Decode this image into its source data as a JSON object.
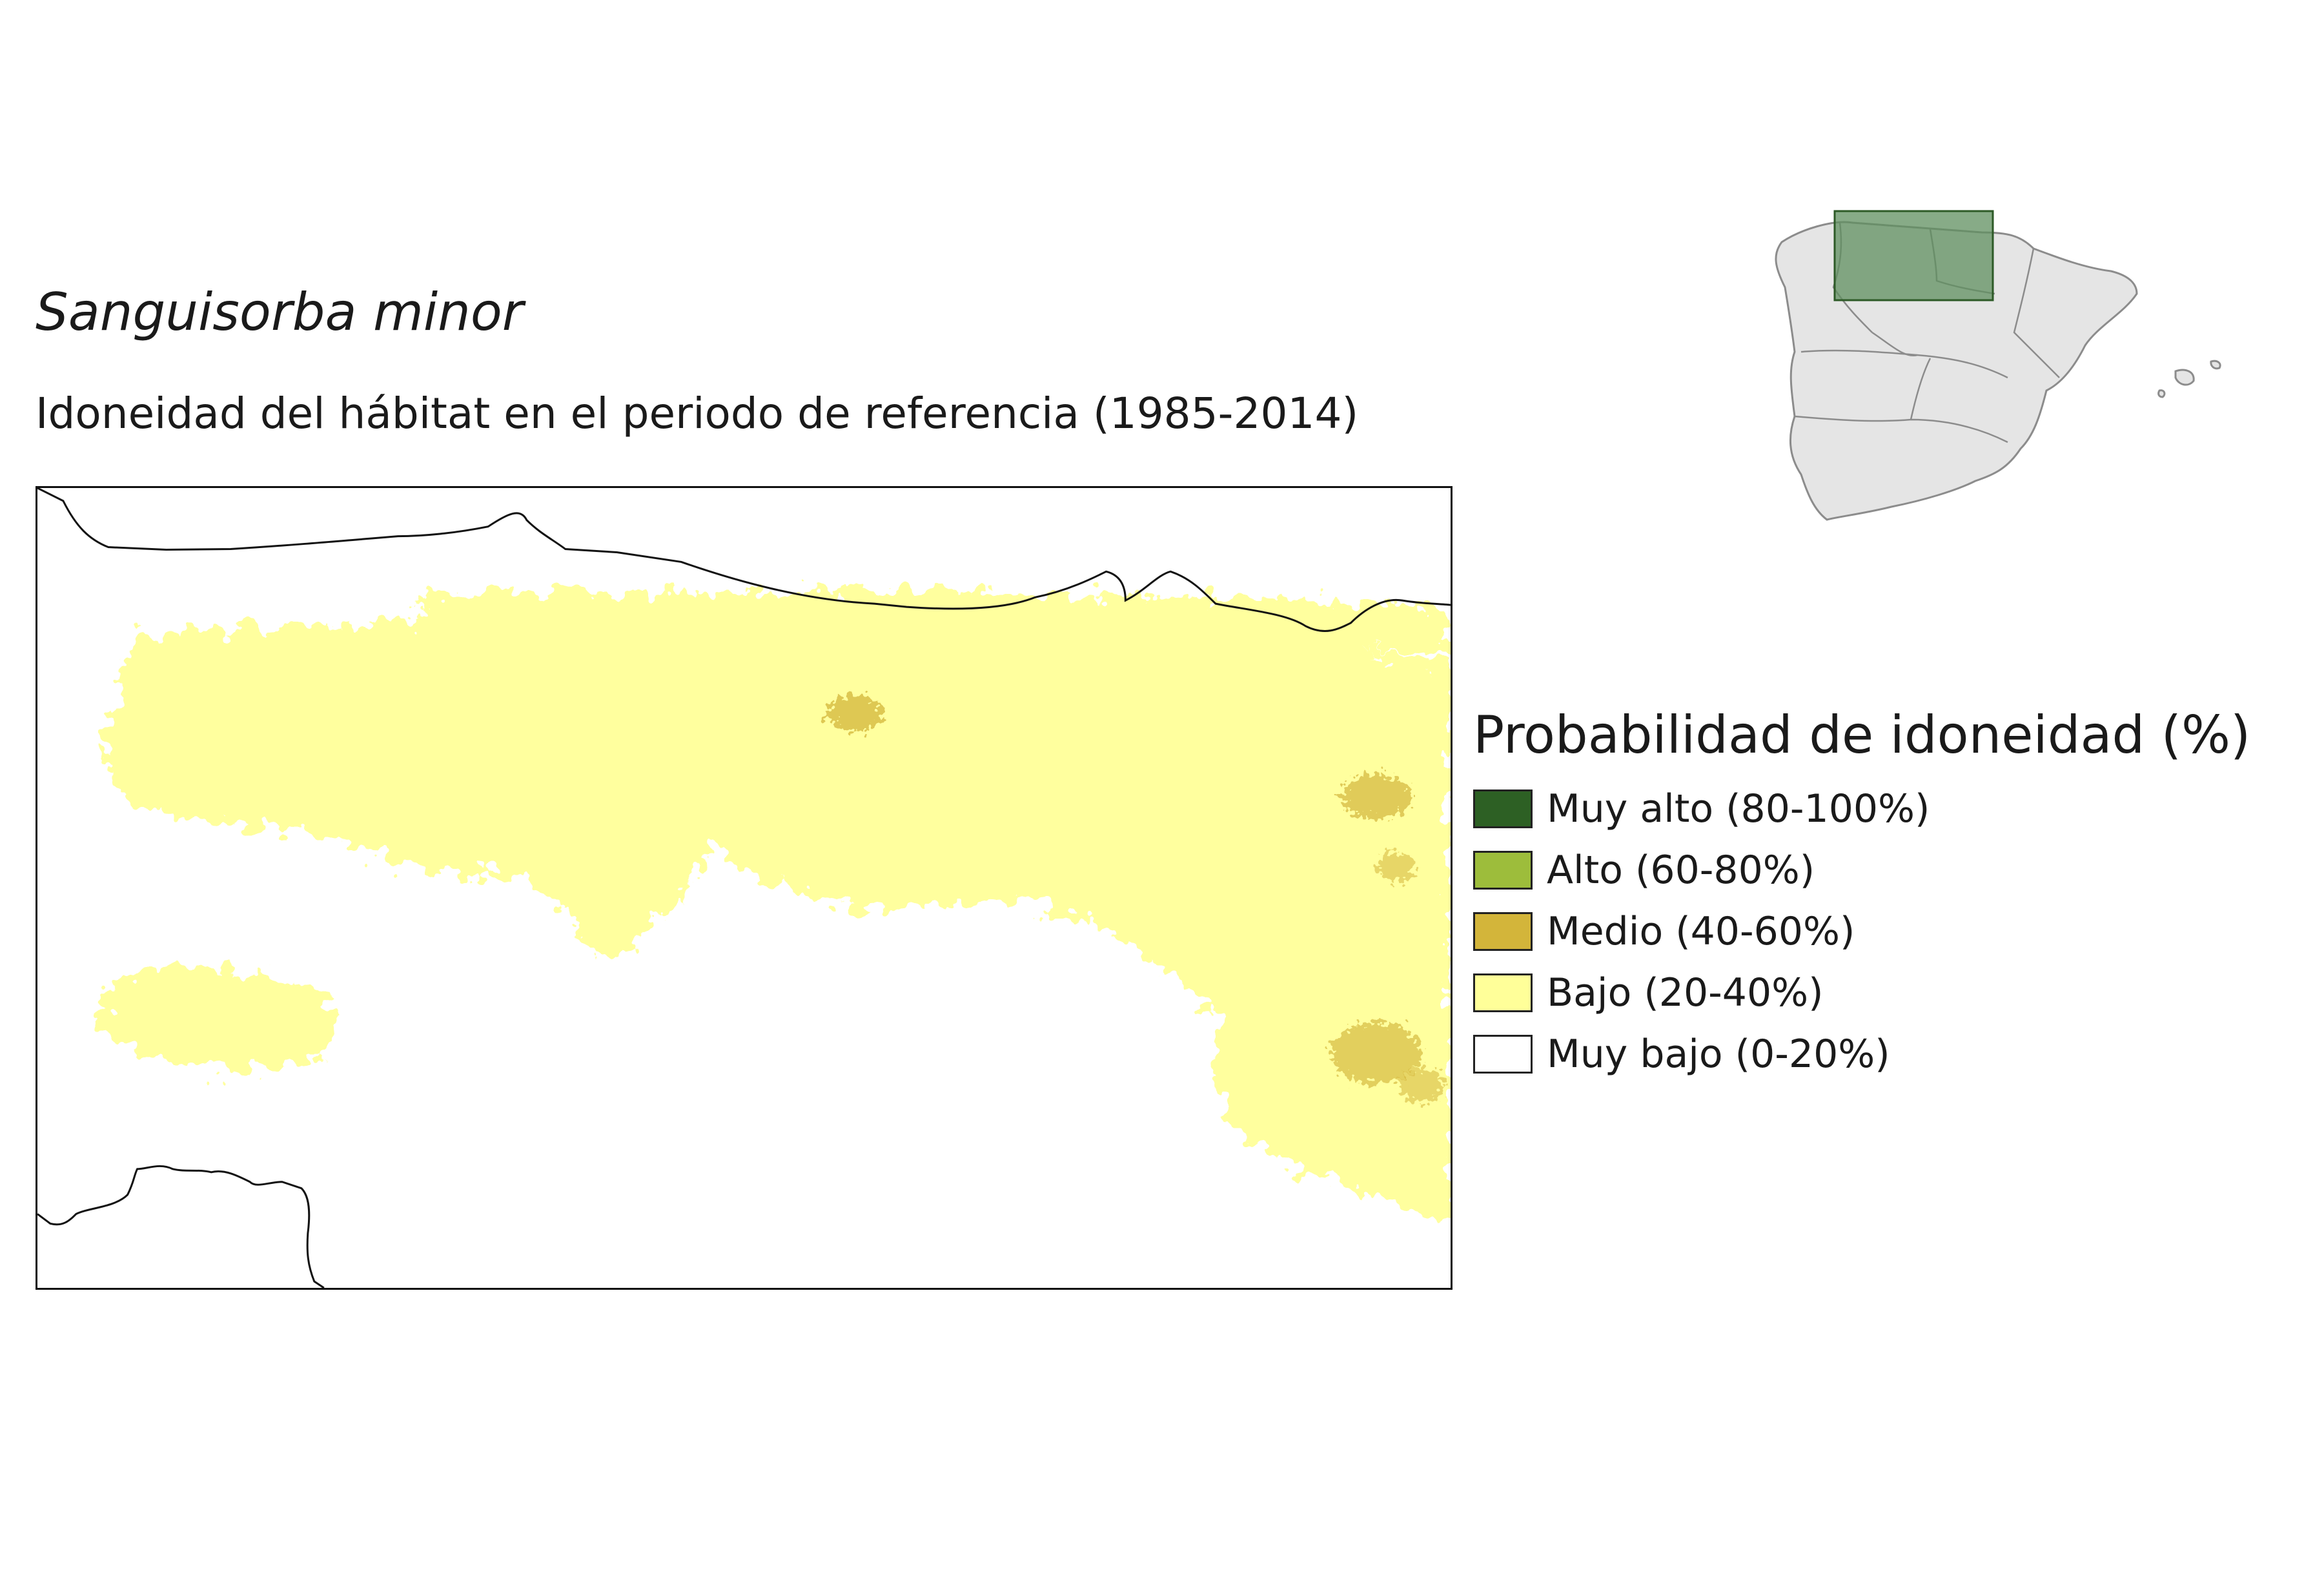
{
  "title": {
    "species": "Sanguisorba minor",
    "subtitle": "Idoneidad del hábitat en el periodo de referencia (1985-2014)"
  },
  "legend": {
    "title": "Probabilidad de idoneidad (%)",
    "items": [
      {
        "label": "Muy alto (80-100%)",
        "color": "#2d6024"
      },
      {
        "label": "Alto (60-80%)",
        "color": "#9dbd3b"
      },
      {
        "label": "Medio (40-60%)",
        "color": "#d3b53a"
      },
      {
        "label": "Bajo (20-40%)",
        "color": "#ffff99"
      },
      {
        "label": "Muy bajo (0-20%)",
        "color": "#ffffff"
      }
    ]
  },
  "colors": {
    "coastline": "#111111",
    "inset_land": "#e5e5e5",
    "inset_border": "#8c8c8c",
    "inset_highlight_fill": "#5f8f5f",
    "inset_highlight_stroke": "#2d5a27"
  }
}
